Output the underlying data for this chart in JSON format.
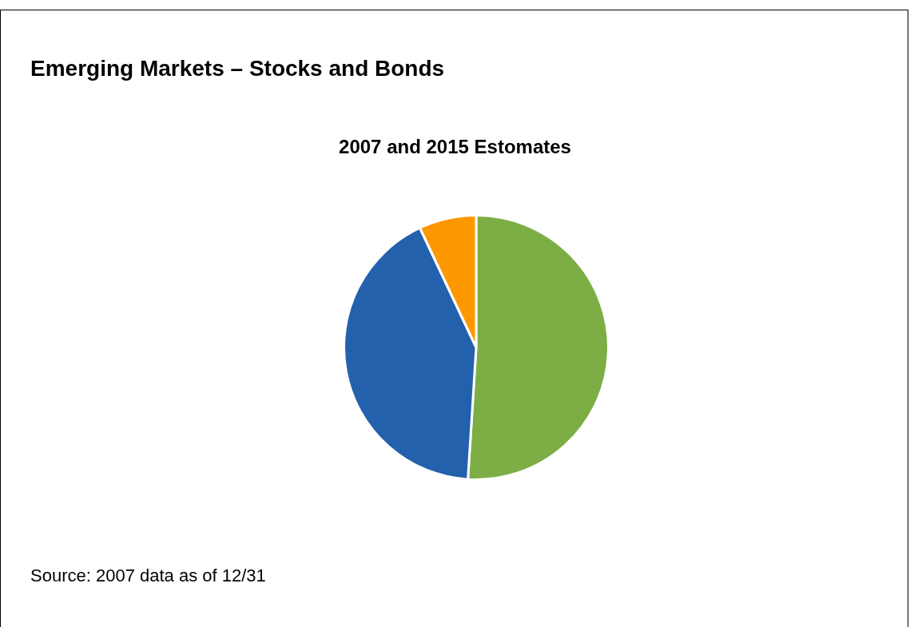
{
  "chart_data": {
    "type": "pie",
    "title": "Emerging Markets – Stocks and Bonds",
    "subtitle": "2007 and 2015 Estomates",
    "categories": [
      null,
      null,
      null
    ],
    "values": [
      51,
      42,
      7
    ],
    "colors": [
      "#7cae45",
      "#2361ad",
      "#fd9800"
    ],
    "legend": false,
    "annotations": [
      "Source: 2007 data as of 12/31"
    ]
  }
}
